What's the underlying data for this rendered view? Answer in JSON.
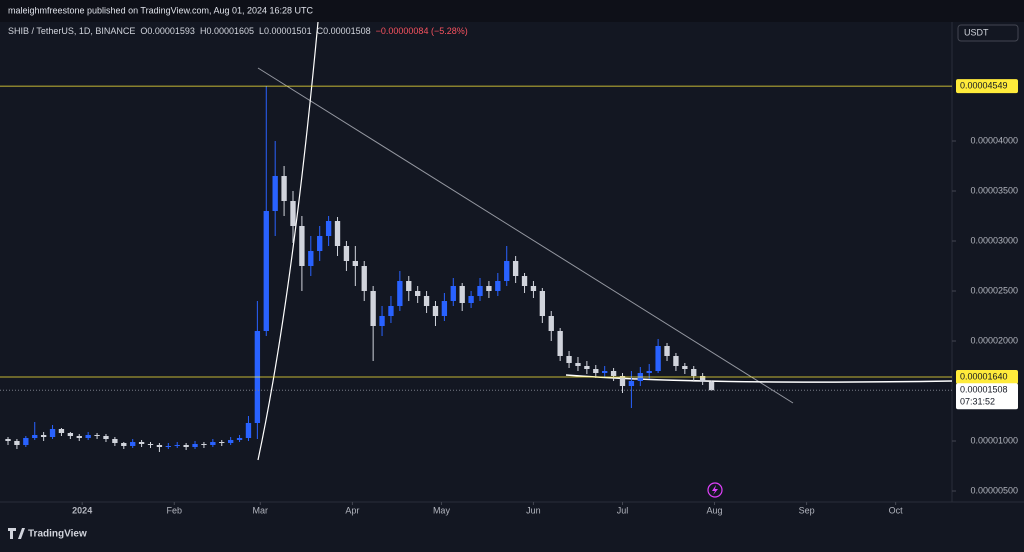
{
  "header": "maleighmfreestone published on TradingView.com, Aug 01, 2024 16:28 UTC",
  "footer": "TradingView",
  "currency_button": "USDT",
  "chart_data": {
    "type": "candlestick",
    "symbol": "SHIB / TetherUS, 1D, BINANCE",
    "legend_values": [
      "O0.00001593",
      "H0.00001605",
      "L0.00001501",
      "C0.00001508",
      "−0.00000084 (−5.28%)"
    ],
    "up_color": "#2962ff",
    "down_color": "#d1d4dc",
    "open": [
      1.02e-05,
      1e-05,
      9.6e-06,
      1.03e-05,
      1.06e-05,
      1.04e-05,
      1.12e-05,
      1.08e-05,
      1.05e-05,
      1.03e-05,
      1.06e-05,
      1.05e-05,
      1.02e-05,
      9.8e-06,
      9.5e-06,
      9.9e-06,
      9.7e-06,
      9.6e-06,
      9.4e-06,
      9.5e-06,
      9.6e-06,
      9.4e-06,
      9.7e-06,
      9.6e-06,
      9.9e-06,
      9.8e-06,
      1.01e-05,
      1.03e-05,
      1.18e-05,
      2.1e-05,
      3.3e-05,
      3.65e-05,
      3.4e-05,
      3.15e-05,
      2.75e-05,
      2.9e-05,
      3.05e-05,
      3.2e-05,
      2.95e-05,
      2.8e-05,
      2.75e-05,
      2.5e-05,
      2.15e-05,
      2.25e-05,
      2.35e-05,
      2.6e-05,
      2.5e-05,
      2.45e-05,
      2.35e-05,
      2.25e-05,
      2.4e-05,
      2.55e-05,
      2.38e-05,
      2.45e-05,
      2.55e-05,
      2.5e-05,
      2.6e-05,
      2.8e-05,
      2.65e-05,
      2.55e-05,
      2.5e-05,
      2.25e-05,
      2.1e-05,
      1.85e-05,
      1.78e-05,
      1.75e-05,
      1.72e-05,
      1.68e-05,
      1.7e-05,
      1.65e-05,
      1.55e-05,
      1.6e-05,
      1.68e-05,
      1.7e-05,
      1.95e-05,
      1.85e-05,
      1.75e-05,
      1.72e-05,
      1.65e-05,
      1.593e-05
    ],
    "high": [
      1.04e-05,
      1.02e-05,
      1.05e-05,
      1.19e-05,
      1.09e-05,
      1.16e-05,
      1.13e-05,
      1.09e-05,
      1.07e-05,
      1.09e-05,
      1.08e-05,
      1.07e-05,
      1.04e-05,
      9.9e-06,
      1.02e-05,
      1.01e-05,
      9.9e-06,
      9.8e-06,
      9.8e-06,
      9.9e-06,
      9.8e-06,
      1e-05,
      9.9e-06,
      1.02e-05,
      1.01e-05,
      1.04e-05,
      1.06e-05,
      1.25e-05,
      2.4e-05,
      4.549e-05,
      4e-05,
      3.75e-05,
      3.5e-05,
      3.25e-05,
      3.05e-05,
      3.15e-05,
      3.25e-05,
      3.24e-05,
      3e-05,
      2.95e-05,
      2.8e-05,
      2.55e-05,
      2.35e-05,
      2.45e-05,
      2.7e-05,
      2.65e-05,
      2.55e-05,
      2.5e-05,
      2.4e-05,
      2.48e-05,
      2.63e-05,
      2.58e-05,
      2.5e-05,
      2.63e-05,
      2.6e-05,
      2.68e-05,
      2.95e-05,
      2.85e-05,
      2.68e-05,
      2.6e-05,
      2.53e-05,
      2.3e-05,
      2.13e-05,
      1.9e-05,
      1.84e-05,
      1.8e-05,
      1.76e-05,
      1.75e-05,
      1.73e-05,
      1.68e-05,
      1.7e-05,
      1.74e-05,
      1.77e-05,
      2.02e-05,
      1.98e-05,
      1.88e-05,
      1.78e-05,
      1.75e-05,
      1.68e-05,
      1.605e-05
    ],
    "low": [
      9.6e-06,
      9.2e-06,
      9.4e-06,
      1.01e-05,
      1e-05,
      1.02e-05,
      1.05e-05,
      1.02e-05,
      1e-05,
      1.01e-05,
      1.02e-05,
      9.9e-06,
      9.5e-06,
      9.2e-06,
      9.3e-06,
      9.4e-06,
      9.3e-06,
      8.9e-06,
      9.2e-06,
      9.3e-06,
      9.1e-06,
      9.2e-06,
      9.3e-06,
      9.4e-06,
      9.5e-06,
      9.6e-06,
      9.9e-06,
      1e-05,
      1.02e-05,
      2.05e-05,
      3.05e-05,
      3.25e-05,
      2.98e-05,
      2.5e-05,
      2.65e-05,
      2.8e-05,
      2.95e-05,
      2.85e-05,
      2.7e-05,
      2.55e-05,
      2.4e-05,
      1.8e-05,
      2.05e-05,
      2.18e-05,
      2.3e-05,
      2.4e-05,
      2.38e-05,
      2.28e-05,
      2.15e-05,
      2.2e-05,
      2.35e-05,
      2.3e-05,
      2.33e-05,
      2.4e-05,
      2.43e-05,
      2.45e-05,
      2.55e-05,
      2.58e-05,
      2.48e-05,
      2.43e-05,
      2.18e-05,
      2e-05,
      1.8e-05,
      1.73e-05,
      1.7e-05,
      1.67e-05,
      1.63e-05,
      1.64e-05,
      1.6e-05,
      1.48e-05,
      1.33e-05,
      1.55e-05,
      1.62e-05,
      1.68e-05,
      1.8e-05,
      1.7e-05,
      1.67e-05,
      1.6e-05,
      1.56e-05,
      1.501e-05
    ],
    "close": [
      1e-05,
      9.6e-06,
      1.03e-05,
      1.06e-05,
      1.04e-05,
      1.12e-05,
      1.08e-05,
      1.05e-05,
      1.03e-05,
      1.06e-05,
      1.05e-05,
      1.02e-05,
      9.8e-06,
      9.5e-06,
      9.9e-06,
      9.7e-06,
      9.6e-06,
      9.4e-06,
      9.5e-06,
      9.6e-06,
      9.4e-06,
      9.7e-06,
      9.6e-06,
      9.9e-06,
      9.8e-06,
      1.01e-05,
      1.03e-05,
      1.18e-05,
      2.1e-05,
      3.3e-05,
      3.65e-05,
      3.4e-05,
      3.15e-05,
      2.75e-05,
      2.9e-05,
      3.05e-05,
      3.2e-05,
      2.95e-05,
      2.8e-05,
      2.75e-05,
      2.5e-05,
      2.15e-05,
      2.25e-05,
      2.35e-05,
      2.6e-05,
      2.5e-05,
      2.45e-05,
      2.35e-05,
      2.25e-05,
      2.4e-05,
      2.55e-05,
      2.38e-05,
      2.45e-05,
      2.55e-05,
      2.5e-05,
      2.6e-05,
      2.8e-05,
      2.65e-05,
      2.55e-05,
      2.5e-05,
      2.25e-05,
      2.1e-05,
      1.85e-05,
      1.78e-05,
      1.75e-05,
      1.72e-05,
      1.68e-05,
      1.7e-05,
      1.65e-05,
      1.55e-05,
      1.6e-05,
      1.68e-05,
      1.7e-05,
      1.95e-05,
      1.85e-05,
      1.75e-05,
      1.72e-05,
      1.65e-05,
      1.593e-05,
      1.508e-05
    ],
    "xlim": [
      -0.9,
      106.0
    ],
    "xticks": [
      {
        "value": 8.33,
        "label": "2024"
      },
      {
        "value": 18.67,
        "label": "Feb"
      },
      {
        "value": 28.33,
        "label": "Mar"
      },
      {
        "value": 38.67,
        "label": "Apr"
      },
      {
        "value": 48.67,
        "label": "May"
      },
      {
        "value": 59,
        "label": "Jun"
      },
      {
        "value": 69,
        "label": "Jul"
      },
      {
        "value": 79.33,
        "label": "Aug"
      },
      {
        "value": 89.67,
        "label": "Sep"
      },
      {
        "value": 99.67,
        "label": "Oct"
      }
    ],
    "ylim": [
      3.9e-06,
      5.19e-05
    ],
    "yticks": [
      {
        "value": 5e-06,
        "label": "0.00000500"
      },
      {
        "value": 1e-05,
        "label": "0.00001000"
      },
      {
        "value": 2e-05,
        "label": "0.00002000"
      },
      {
        "value": 2.5e-05,
        "label": "0.00002500"
      },
      {
        "value": 3e-05,
        "label": "0.00003000"
      },
      {
        "value": 3.5e-05,
        "label": "0.00003500"
      },
      {
        "value": 4e-05,
        "label": "0.00004000"
      }
    ],
    "price_lines": [
      {
        "value": 4.549e-05,
        "label": "0.00004549",
        "color": "#ffeb3b"
      },
      {
        "value": 1.64e-05,
        "label": "0.00001640",
        "color": "#ffeb3b"
      }
    ],
    "last_price": {
      "value": 1.508e-05,
      "label": "0.00001508"
    },
    "countdown": "07:31:52"
  }
}
